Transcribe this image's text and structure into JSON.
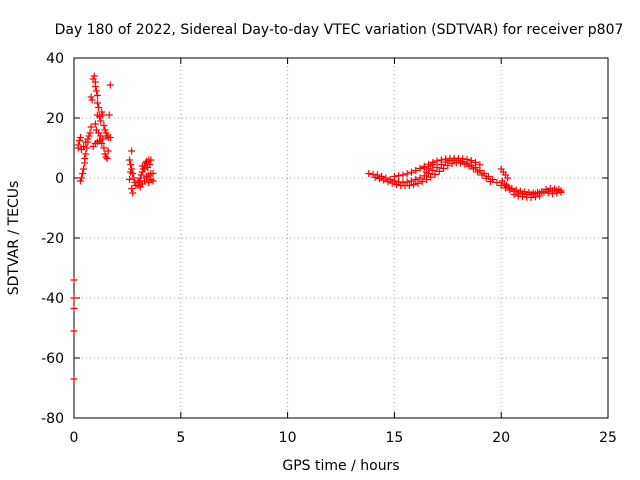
{
  "chart_data": {
    "type": "scatter",
    "title": "Day 180 of 2022, Sidereal Day-to-day VTEC variation (SDTVAR) for receiver p807",
    "xlabel": "GPS time / hours",
    "ylabel": "SDTVAR / TECUs",
    "xlim": [
      0,
      25
    ],
    "ylim": [
      -80,
      40
    ],
    "xticks": [
      0,
      5,
      10,
      15,
      20,
      25
    ],
    "yticks": [
      -80,
      -60,
      -40,
      -20,
      0,
      20,
      40
    ],
    "grid": true,
    "marker": "+",
    "color": "#ff0000",
    "series": [
      {
        "name": "SDTVAR",
        "points": [
          [
            0.0,
            -34
          ],
          [
            0.0,
            -40
          ],
          [
            0.0,
            -43.5
          ],
          [
            0.0,
            -51
          ],
          [
            0.0,
            -67
          ],
          [
            0.2,
            10
          ],
          [
            0.2,
            11
          ],
          [
            0.25,
            12.5
          ],
          [
            0.3,
            13.5
          ],
          [
            0.3,
            -1
          ],
          [
            0.35,
            0
          ],
          [
            0.4,
            1.5
          ],
          [
            0.45,
            3
          ],
          [
            0.5,
            5
          ],
          [
            0.5,
            6.5
          ],
          [
            0.55,
            8
          ],
          [
            0.6,
            10
          ],
          [
            0.65,
            12
          ],
          [
            0.7,
            14
          ],
          [
            0.75,
            15
          ],
          [
            0.8,
            17
          ],
          [
            0.35,
            9.5
          ],
          [
            0.45,
            10.5
          ],
          [
            0.55,
            12
          ],
          [
            0.65,
            13
          ],
          [
            0.8,
            27
          ],
          [
            0.85,
            26
          ],
          [
            0.9,
            33
          ],
          [
            0.95,
            34
          ],
          [
            1.0,
            32
          ],
          [
            1.0,
            30.5
          ],
          [
            1.05,
            29
          ],
          [
            1.1,
            27.5
          ],
          [
            1.1,
            25
          ],
          [
            1.15,
            23.5
          ],
          [
            1.1,
            21
          ],
          [
            1.2,
            20.5
          ],
          [
            1.25,
            19
          ],
          [
            1.3,
            22
          ],
          [
            1.35,
            21
          ],
          [
            1.4,
            17.5
          ],
          [
            1.45,
            16
          ],
          [
            1.5,
            15
          ],
          [
            1.55,
            14
          ],
          [
            1.6,
            13.5
          ],
          [
            1.65,
            21
          ],
          [
            1.7,
            31
          ],
          [
            0.9,
            10.5
          ],
          [
            1.0,
            11.5
          ],
          [
            1.1,
            12
          ],
          [
            1.2,
            12.5
          ],
          [
            1.3,
            11.5
          ],
          [
            1.4,
            10
          ],
          [
            1.45,
            8
          ],
          [
            1.5,
            7
          ],
          [
            1.55,
            6.5
          ],
          [
            1.6,
            9
          ],
          [
            1.7,
            13.5
          ],
          [
            1.0,
            18
          ],
          [
            1.05,
            16
          ],
          [
            1.15,
            15
          ],
          [
            1.25,
            14
          ],
          [
            1.35,
            13
          ],
          [
            2.7,
            9
          ],
          [
            2.6,
            6
          ],
          [
            2.65,
            4.5
          ],
          [
            2.7,
            3
          ],
          [
            2.75,
            1.5
          ],
          [
            2.8,
            0
          ],
          [
            2.85,
            -1.5
          ],
          [
            2.7,
            -3.5
          ],
          [
            2.75,
            -5
          ],
          [
            2.9,
            -2.5
          ],
          [
            2.6,
            -0.5
          ],
          [
            2.65,
            2
          ],
          [
            3.0,
            -1.5
          ],
          [
            3.05,
            -1
          ],
          [
            3.1,
            0
          ],
          [
            3.15,
            1
          ],
          [
            3.2,
            2
          ],
          [
            3.25,
            3
          ],
          [
            3.3,
            4
          ],
          [
            3.35,
            5
          ],
          [
            3.4,
            5.5
          ],
          [
            3.5,
            6
          ],
          [
            3.6,
            6
          ],
          [
            3.0,
            -2.5
          ],
          [
            3.1,
            -3
          ],
          [
            3.2,
            -2
          ],
          [
            3.3,
            -1
          ],
          [
            3.4,
            0
          ],
          [
            3.5,
            1
          ],
          [
            3.6,
            1.5
          ],
          [
            3.7,
            1.5
          ],
          [
            3.7,
            -1
          ],
          [
            3.6,
            -0.5
          ],
          [
            3.5,
            -1.5
          ],
          [
            3.4,
            0.5
          ],
          [
            3.2,
            4
          ],
          [
            3.3,
            3
          ],
          [
            3.45,
            3.5
          ],
          [
            3.55,
            4.5
          ],
          [
            13.8,
            1.5
          ],
          [
            14.0,
            1.2
          ],
          [
            14.2,
            1
          ],
          [
            14.4,
            0.5
          ],
          [
            14.6,
            0
          ],
          [
            14.8,
            -0.5
          ],
          [
            15.0,
            -1
          ],
          [
            15.2,
            -1.3
          ],
          [
            15.4,
            -1.5
          ],
          [
            15.6,
            -1.3
          ],
          [
            15.8,
            -1
          ],
          [
            16.0,
            -0.5
          ],
          [
            16.2,
            0
          ],
          [
            16.4,
            0.7
          ],
          [
            16.6,
            1.5
          ],
          [
            16.8,
            2.5
          ],
          [
            17.0,
            3.5
          ],
          [
            17.2,
            4.5
          ],
          [
            17.4,
            5.3
          ],
          [
            17.6,
            5.8
          ],
          [
            17.8,
            6
          ],
          [
            18.0,
            5.8
          ],
          [
            18.2,
            5.5
          ],
          [
            18.4,
            5
          ],
          [
            18.6,
            4.3
          ],
          [
            18.8,
            3.5
          ],
          [
            19.0,
            2.5
          ],
          [
            19.2,
            1.5
          ],
          [
            19.4,
            0.5
          ],
          [
            19.6,
            -0.5
          ],
          [
            19.8,
            -1.5
          ],
          [
            20.0,
            -2.5
          ],
          [
            20.2,
            -3.3
          ],
          [
            20.4,
            -4
          ],
          [
            20.6,
            -4.5
          ],
          [
            20.8,
            -5
          ],
          [
            21.0,
            -5.2
          ],
          [
            21.2,
            -5.5
          ],
          [
            21.4,
            -5.5
          ],
          [
            21.6,
            -5.3
          ],
          [
            21.8,
            -5
          ],
          [
            22.0,
            -4.7
          ],
          [
            22.2,
            -4.4
          ],
          [
            22.4,
            -4.2
          ],
          [
            22.6,
            -4.2
          ],
          [
            22.8,
            -4.3
          ],
          [
            14.1,
            0.2
          ],
          [
            14.3,
            -0.2
          ],
          [
            14.5,
            -0.7
          ],
          [
            14.7,
            -1.2
          ],
          [
            14.9,
            -1.7
          ],
          [
            15.1,
            -2.2
          ],
          [
            15.3,
            -2.5
          ],
          [
            15.5,
            -2.6
          ],
          [
            15.7,
            -2.5
          ],
          [
            15.9,
            -2.2
          ],
          [
            16.1,
            -1.8
          ],
          [
            16.3,
            -1.2
          ],
          [
            16.5,
            -0.5
          ],
          [
            16.7,
            0.3
          ],
          [
            16.9,
            1.2
          ],
          [
            17.1,
            2.2
          ],
          [
            17.3,
            3.2
          ],
          [
            17.5,
            4.1
          ],
          [
            17.7,
            4.8
          ],
          [
            17.9,
            5.1
          ],
          [
            18.1,
            5
          ],
          [
            18.3,
            4.6
          ],
          [
            18.5,
            3.9
          ],
          [
            18.7,
            3
          ],
          [
            18.9,
            2
          ],
          [
            19.1,
            1
          ],
          [
            19.3,
            -0.1
          ],
          [
            19.5,
            -1.2
          ],
          [
            15.0,
            0.5
          ],
          [
            15.2,
            0.8
          ],
          [
            15.4,
            1
          ],
          [
            15.6,
            1.4
          ],
          [
            15.8,
            1.9
          ],
          [
            16.0,
            2.5
          ],
          [
            16.2,
            3.2
          ],
          [
            16.4,
            3.9
          ],
          [
            16.6,
            4.6
          ],
          [
            16.8,
            5.2
          ],
          [
            17.0,
            5.7
          ],
          [
            17.2,
            6
          ],
          [
            17.4,
            6.3
          ],
          [
            17.6,
            6.5
          ],
          [
            17.8,
            6.6
          ],
          [
            18.0,
            6.5
          ],
          [
            18.2,
            6.4
          ],
          [
            18.4,
            6.2
          ],
          [
            18.6,
            5.8
          ],
          [
            18.8,
            5.2
          ],
          [
            19.0,
            4.4
          ],
          [
            16.5,
            2
          ],
          [
            16.6,
            3
          ],
          [
            16.7,
            4
          ],
          [
            16.8,
            4.5
          ],
          [
            16.4,
            3.5
          ],
          [
            20.0,
            3
          ],
          [
            20.1,
            2
          ],
          [
            20.2,
            1
          ],
          [
            20.3,
            0
          ],
          [
            20.05,
            -1
          ],
          [
            20.15,
            -2
          ],
          [
            20.25,
            -2.5
          ],
          [
            20.35,
            -3
          ],
          [
            20.5,
            -3.5
          ],
          [
            20.7,
            -4
          ],
          [
            20.9,
            -4.4
          ],
          [
            21.1,
            -4.6
          ],
          [
            21.3,
            -4.8
          ],
          [
            21.5,
            -5
          ],
          [
            21.7,
            -4.8
          ],
          [
            21.9,
            -4.5
          ],
          [
            20.6,
            -5.5
          ],
          [
            20.8,
            -6
          ],
          [
            21.0,
            -6.2
          ],
          [
            21.2,
            -6.4
          ],
          [
            21.4,
            -6.5
          ],
          [
            21.6,
            -6.3
          ],
          [
            21.8,
            -6
          ],
          [
            22.1,
            -3.8
          ],
          [
            22.3,
            -3.5
          ],
          [
            22.5,
            -3.6
          ],
          [
            22.7,
            -3.8
          ],
          [
            22.2,
            -5
          ],
          [
            22.4,
            -5.2
          ],
          [
            22.6,
            -5
          ],
          [
            22.8,
            -4.8
          ]
        ]
      }
    ]
  }
}
